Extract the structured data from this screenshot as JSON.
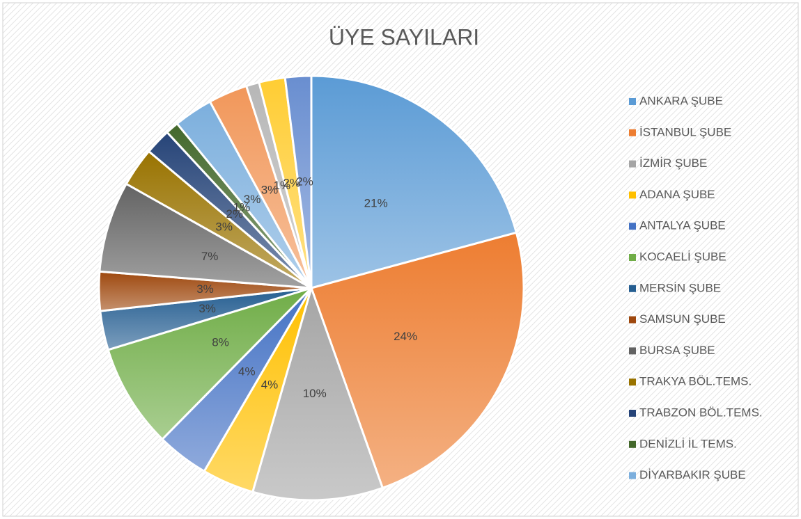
{
  "chart_data": {
    "type": "pie",
    "title": "ÜYE SAYILARI",
    "categories": [
      "ANKARA ŞUBE",
      "İSTANBUL ŞUBE",
      "İZMİR ŞUBE",
      "ADANA ŞUBE",
      "ANTALYA ŞUBE",
      "KOCAELİ ŞUBE",
      "MERSİN ŞUBE",
      "SAMSUN ŞUBE",
      "BURSA ŞUBE",
      "TRAKYA BÖL.TEMS.",
      "TRABZON BÖL.TEMS.",
      "DENİZLİ İL TEMS.",
      "DİYARBAKIR ŞUBE",
      null,
      null,
      null,
      null
    ],
    "values": [
      21,
      24,
      10,
      4,
      4,
      8,
      3,
      3,
      7,
      3,
      2,
      1,
      3,
      3,
      1,
      2,
      2
    ],
    "value_labels": [
      "21%",
      "24%",
      "10%",
      "4%",
      "4%",
      "8%",
      "3%",
      "3%",
      "7%",
      "3%",
      "2%",
      "1%",
      "3%",
      "3%",
      "1%",
      "2%",
      "2%"
    ],
    "colors": [
      "#5B9BD5",
      "#ED7D31",
      "#A5A5A5",
      "#FFC000",
      "#4472C4",
      "#70AD47",
      "#255E91",
      "#9E480E",
      "#636363",
      "#997300",
      "#264478",
      "#43682B",
      "#7CAFDD",
      "#F1975A",
      "#B7B7B7",
      "#FFCD33",
      "#698ED0"
    ],
    "legend": "right"
  }
}
